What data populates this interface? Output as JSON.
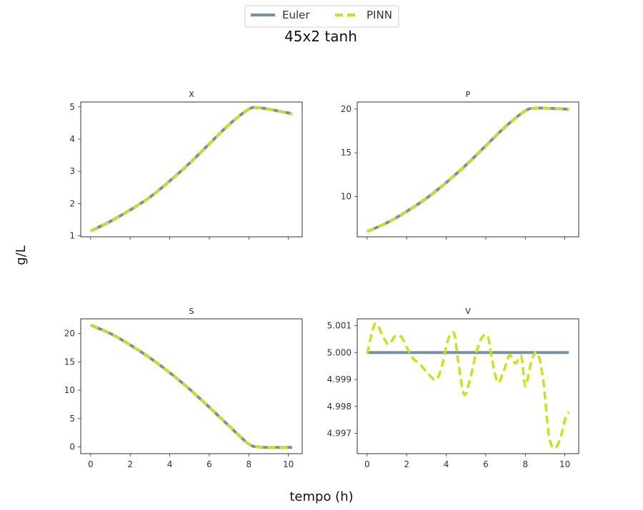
{
  "figure": {
    "suptitle": "45x2 tanh",
    "xlabel": "tempo (h)",
    "ylabel": "g/L"
  },
  "legend": {
    "placement": "top-center",
    "entries": [
      {
        "name": "Euler",
        "color": "#7590a3",
        "style": "solid"
      },
      {
        "name": "PINN",
        "color": "#c8e31a",
        "style": "dashed"
      }
    ]
  },
  "chart_data": [
    {
      "type": "line",
      "title": "X",
      "xlim": [
        -0.5,
        10.7
      ],
      "ylim": [
        0.97,
        5.15
      ],
      "xticks": [
        0,
        2,
        4,
        6,
        8,
        10
      ],
      "yticks": [
        1,
        2,
        3,
        4,
        5
      ],
      "show_xtick_labels": false,
      "x": [
        0,
        1,
        2,
        3,
        4,
        5,
        6,
        7,
        8,
        8.5,
        9,
        9.5,
        10,
        10.2
      ],
      "series": [
        {
          "name": "Euler",
          "values": [
            1.15,
            1.45,
            1.8,
            2.2,
            2.7,
            3.25,
            3.85,
            4.45,
            4.93,
            4.97,
            4.93,
            4.87,
            4.81,
            4.78
          ]
        },
        {
          "name": "PINN",
          "values": [
            1.15,
            1.45,
            1.8,
            2.2,
            2.7,
            3.25,
            3.85,
            4.45,
            4.93,
            4.97,
            4.93,
            4.87,
            4.81,
            4.78
          ]
        }
      ]
    },
    {
      "type": "line",
      "title": "P",
      "xlim": [
        -0.5,
        10.7
      ],
      "ylim": [
        5.4,
        20.8
      ],
      "xticks": [
        0,
        2,
        4,
        6,
        8,
        10
      ],
      "yticks": [
        10,
        15,
        20
      ],
      "show_xtick_labels": false,
      "x": [
        0,
        1,
        2,
        3,
        4,
        5,
        6,
        7,
        8,
        8.5,
        9,
        9.5,
        10,
        10.2
      ],
      "series": [
        {
          "name": "Euler",
          "values": [
            6.0,
            7.0,
            8.3,
            9.8,
            11.6,
            13.6,
            15.8,
            18.0,
            19.8,
            20.1,
            20.1,
            20.05,
            20.0,
            19.95
          ]
        },
        {
          "name": "PINN",
          "values": [
            6.0,
            7.0,
            8.3,
            9.8,
            11.6,
            13.6,
            15.8,
            18.0,
            19.8,
            20.1,
            20.1,
            20.05,
            20.0,
            19.95
          ]
        }
      ]
    },
    {
      "type": "line",
      "title": "S",
      "xlim": [
        -0.5,
        10.7
      ],
      "ylim": [
        -1.2,
        22.6
      ],
      "xticks": [
        0,
        2,
        4,
        6,
        8,
        10
      ],
      "yticks": [
        0,
        5,
        10,
        15,
        20
      ],
      "show_xtick_labels": true,
      "x": [
        0,
        1,
        2,
        3,
        4,
        5,
        6,
        7,
        8,
        8.5,
        9,
        9.5,
        10,
        10.2
      ],
      "series": [
        {
          "name": "Euler",
          "values": [
            21.5,
            20.0,
            18.0,
            15.7,
            13.1,
            10.2,
            7.0,
            3.7,
            0.5,
            0.0,
            -0.1,
            -0.1,
            -0.1,
            -0.1
          ]
        },
        {
          "name": "PINN",
          "values": [
            21.5,
            20.0,
            18.0,
            15.7,
            13.1,
            10.2,
            7.0,
            3.7,
            0.5,
            0.0,
            -0.1,
            -0.1,
            -0.1,
            -0.1
          ]
        }
      ]
    },
    {
      "type": "line",
      "title": "V",
      "xlim": [
        -0.5,
        10.7
      ],
      "ylim": [
        4.99625,
        5.00125
      ],
      "xticks": [
        0,
        2,
        4,
        6,
        8,
        10
      ],
      "yticks": [
        4.997,
        4.998,
        4.999,
        5.0,
        5.001
      ],
      "ytick_labels": [
        "4.997",
        "4.998",
        "4.999",
        "5.000",
        "5.001"
      ],
      "show_xtick_labels": true,
      "x_euler": [
        0,
        10.2
      ],
      "x_pinn": [
        0,
        0.3,
        0.5,
        0.8,
        1.1,
        1.4,
        1.7,
        2.0,
        2.3,
        2.7,
        3.1,
        3.5,
        3.8,
        4.1,
        4.4,
        4.6,
        4.9,
        5.2,
        5.5,
        5.8,
        6.1,
        6.3,
        6.6,
        6.9,
        7.2,
        7.5,
        7.8,
        8.0,
        8.3,
        8.6,
        8.9,
        9.2,
        9.5,
        9.8,
        10.0,
        10.2
      ],
      "series": [
        {
          "name": "Euler",
          "values": [
            5.0,
            5.0
          ]
        },
        {
          "name": "PINN",
          "values": [
            4.99995,
            5.0009,
            5.00105,
            5.0006,
            5.0003,
            5.0006,
            5.0006,
            5.0002,
            4.9998,
            4.99955,
            4.9992,
            4.999,
            4.99955,
            5.0005,
            5.0007,
            4.9997,
            4.99845,
            4.999,
            4.99995,
            5.00055,
            5.0006,
            4.9998,
            4.9989,
            4.9993,
            4.9999,
            4.9996,
            4.99985,
            4.99875,
            4.99965,
            5.0,
            4.999,
            4.9969,
            4.99645,
            4.9969,
            4.9975,
            4.9978
          ]
        }
      ]
    }
  ]
}
